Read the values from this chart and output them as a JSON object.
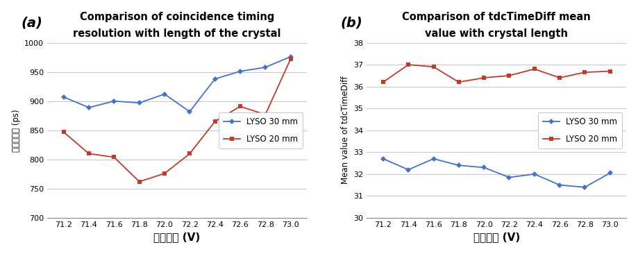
{
  "x_labels": [
    "71.2",
    "71.4",
    "71.6",
    "71.8",
    "72.0",
    "72.2",
    "72.4",
    "72.6",
    "72.8",
    "73.0"
  ],
  "x_values": [
    71.2,
    71.4,
    71.6,
    71.8,
    72.0,
    72.2,
    72.4,
    72.6,
    72.8,
    73.0
  ],
  "plot_a": {
    "title": "Comparison of coincidence timing\nresolution with length of the crystal",
    "ylabel": "시간분해능 (ps)",
    "xlabel": "공급전압 (V)",
    "ylim": [
      700,
      1000
    ],
    "yticks": [
      700,
      750,
      800,
      850,
      900,
      950,
      1000
    ],
    "lyso30": [
      907,
      889,
      900,
      897,
      912,
      882,
      938,
      951,
      958,
      976
    ],
    "lyso20": [
      847,
      810,
      804,
      762,
      776,
      810,
      865,
      891,
      877,
      972
    ],
    "color30": "#4472C4",
    "color20": "#C0392B",
    "label30": "LYSO 30 mm",
    "label20": "LYSO 20 mm",
    "panel_label": "(a)"
  },
  "plot_b": {
    "title": "Comparison of tdcTimeDiff mean\nvalue with crystal length",
    "ylabel": "Mean value of tdcTimeDiff",
    "xlabel": "공급전압 (V)",
    "ylim": [
      30,
      38
    ],
    "yticks": [
      30,
      31,
      32,
      33,
      34,
      35,
      36,
      37,
      38
    ],
    "lyso30": [
      32.7,
      32.2,
      32.7,
      32.4,
      32.3,
      31.85,
      32.0,
      31.5,
      31.4,
      32.05
    ],
    "lyso20": [
      36.2,
      37.0,
      36.9,
      36.2,
      36.4,
      36.5,
      36.8,
      36.4,
      36.65,
      36.7
    ],
    "color30": "#4472C4",
    "color20": "#C0392B",
    "label30": "LYSO 30 mm",
    "label20": "LYSO 20 mm",
    "panel_label": "(b)"
  },
  "background_color": "#FFFFFF",
  "plot_bg_color": "#FFFFFF",
  "grid_color": "#C8C8C8",
  "spine_color": "#888888"
}
